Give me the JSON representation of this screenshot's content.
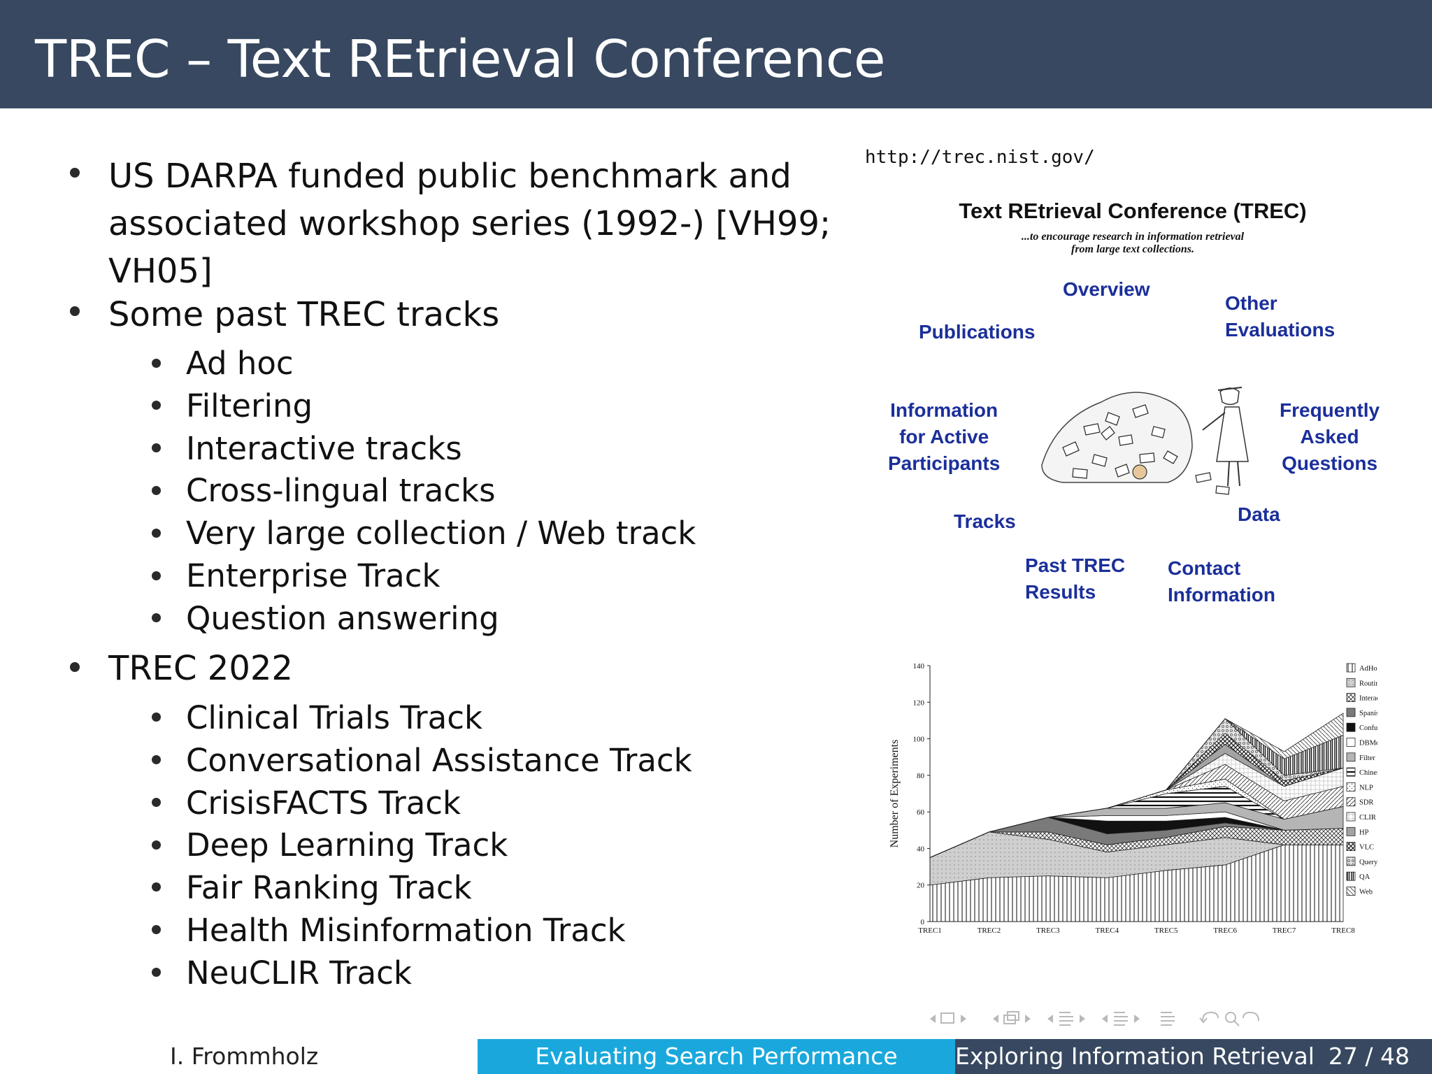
{
  "slide": {
    "title": "TREC – Text REtrieval Conference"
  },
  "content": {
    "bullet1_line1": "US DARPA funded public benchmark and",
    "bullet1_line2": "associated workshop series (1992-) [VH99;",
    "bullet1_line3": "VH05]",
    "bullet2": "Some past TREC tracks",
    "past_tracks": [
      "Ad hoc",
      "Filtering",
      "Interactive tracks",
      "Cross-lingual tracks",
      "Very large collection / Web track",
      "Enterprise Track",
      "Question answering"
    ],
    "bullet3": "TREC 2022",
    "tracks_2022": [
      "Clinical Trials Track",
      "Conversational Assistance Track",
      "CrisisFACTS Track",
      "Deep Learning Track",
      "Fair Ranking Track",
      "Health Misinformation Track",
      "NeuCLIR Track"
    ]
  },
  "trec_site": {
    "url": "http://trec.nist.gov/",
    "heading": "Text REtrieval Conference (TREC)",
    "subtitle_line1": "...to encourage research in information retrieval",
    "subtitle_line2": "from large text collections.",
    "links": {
      "overview": "Overview",
      "other_line1": "Other",
      "other_line2": "Evaluations",
      "publications": "Publications",
      "info_line1": "Information",
      "info_line2": "for Active",
      "info_line3": "Participants",
      "faq_line1": "Frequently",
      "faq_line2": "Asked",
      "faq_line3": "Questions",
      "tracks": "Tracks",
      "data": "Data",
      "past_line1": "Past TREC",
      "past_line2": "Results",
      "contact_line1": "Contact",
      "contact_line2": "Information"
    }
  },
  "chart_data": {
    "type": "area",
    "stacked": true,
    "ylabel": "Number of Experiments",
    "xlabel": "",
    "categories": [
      "TREC1",
      "TREC2",
      "TREC3",
      "TREC4",
      "TREC5",
      "TREC6",
      "TREC7",
      "TREC8"
    ],
    "ylim": [
      0,
      140
    ],
    "yticks": [
      0,
      20,
      40,
      60,
      80,
      100,
      120,
      140
    ],
    "legend_position": "right",
    "series": [
      {
        "name": "AdHoc",
        "values": [
          20,
          24,
          25,
          24,
          28,
          31,
          42,
          42
        ]
      },
      {
        "name": "Routing",
        "values": [
          15,
          25,
          20,
          14,
          14,
          15,
          0,
          0
        ]
      },
      {
        "name": "Interactive",
        "values": [
          0,
          0,
          4,
          4,
          4,
          6,
          8,
          9
        ]
      },
      {
        "name": "Spanish",
        "values": [
          0,
          0,
          8,
          6,
          4,
          2,
          0,
          0
        ]
      },
      {
        "name": "Confusion",
        "values": [
          0,
          0,
          0,
          7,
          5,
          3,
          0,
          0
        ]
      },
      {
        "name": "DBMerge",
        "values": [
          0,
          0,
          0,
          3,
          3,
          3,
          0,
          0
        ]
      },
      {
        "name": "Filter",
        "values": [
          0,
          0,
          0,
          4,
          4,
          5,
          6,
          12
        ]
      },
      {
        "name": "Chinese",
        "values": [
          0,
          0,
          0,
          0,
          8,
          9,
          0,
          0
        ]
      },
      {
        "name": "NLP",
        "values": [
          0,
          0,
          0,
          0,
          2,
          4,
          0,
          0
        ]
      },
      {
        "name": "SDR",
        "values": [
          0,
          0,
          0,
          0,
          0,
          8,
          10,
          11
        ]
      },
      {
        "name": "CLIR",
        "values": [
          0,
          0,
          0,
          0,
          0,
          6,
          8,
          10
        ]
      },
      {
        "name": "HP",
        "values": [
          0,
          0,
          0,
          0,
          0,
          5,
          0,
          0
        ]
      },
      {
        "name": "VLC",
        "values": [
          0,
          0,
          0,
          0,
          0,
          6,
          3,
          0
        ]
      },
      {
        "name": "Query",
        "values": [
          0,
          0,
          0,
          0,
          0,
          8,
          3,
          0
        ]
      },
      {
        "name": "QA",
        "values": [
          0,
          0,
          0,
          0,
          0,
          0,
          9,
          18
        ]
      },
      {
        "name": "Web",
        "values": [
          0,
          0,
          0,
          0,
          0,
          0,
          4,
          12
        ]
      }
    ]
  },
  "colors": {
    "title_bar": "#374860",
    "footer_mid": "#1aa8dc",
    "link_blue": "#1b2f9a"
  },
  "footer": {
    "author": "I. Frommholz",
    "section": "Evaluating Search Performance",
    "course": "Exploring Information Retrieval",
    "page": "27 / 48"
  }
}
